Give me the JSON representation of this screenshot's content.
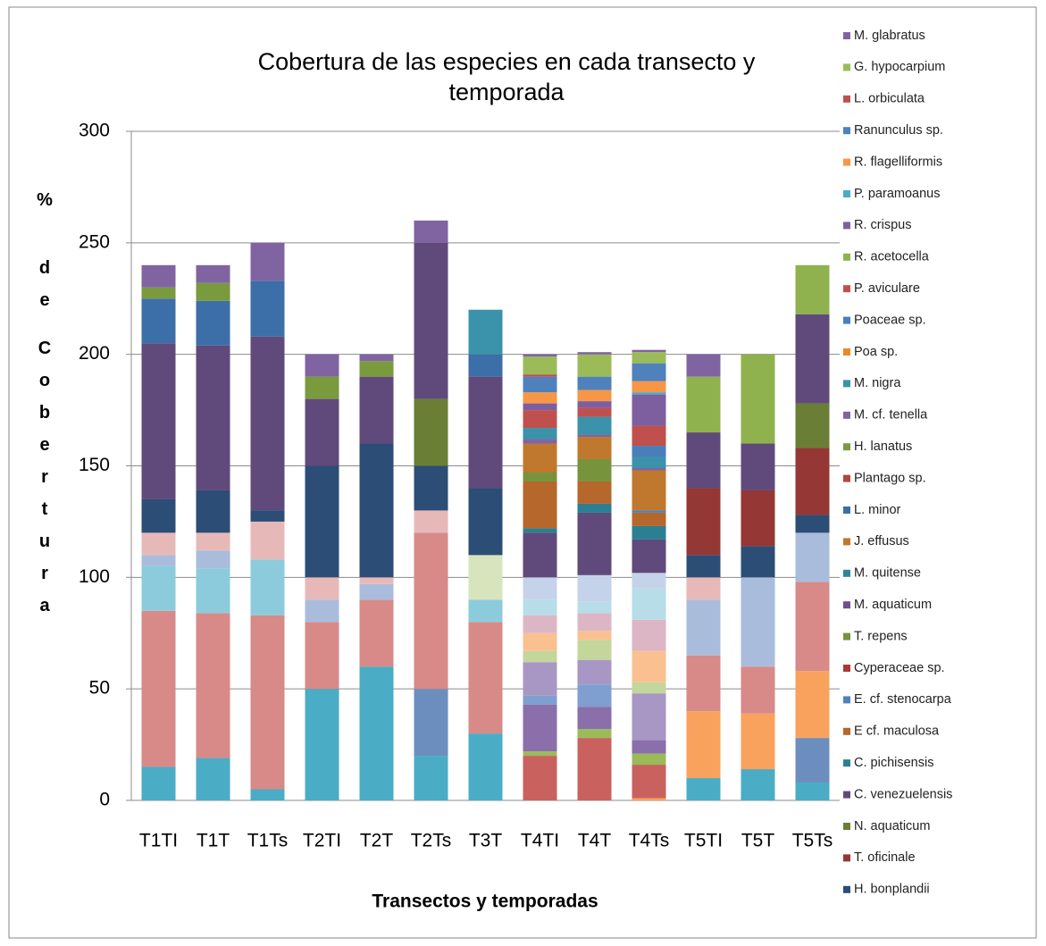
{
  "chart_data": {
    "type": "stacked_bar",
    "title": "Cobertura de las especies en cada transecto y temporada",
    "x_label": "Transectos y temporadas",
    "y_label": "% de Cobertura",
    "categories": [
      "T1TI",
      "T1T",
      "T1Ts",
      "T2TI",
      "T2T",
      "T2Ts",
      "T3T",
      "T4TI",
      "T4T",
      "T4Ts",
      "T5TI",
      "T5T",
      "T5Ts"
    ],
    "ylim": [
      0,
      300
    ],
    "yticks": [
      0,
      50,
      100,
      150,
      200,
      250,
      300
    ],
    "grid": true,
    "legend": "right",
    "series": [
      {
        "color": "#4bacc6",
        "values": [
          15,
          19,
          5,
          50,
          60,
          20,
          30,
          0,
          0,
          0,
          10,
          14,
          8
        ]
      },
      {
        "color": "#6c8ebf",
        "values": [
          0,
          0,
          0,
          0,
          0,
          30,
          0,
          0,
          0,
          0,
          0,
          0,
          20
        ]
      },
      {
        "color": "#f9a25e",
        "values": [
          0,
          0,
          0,
          0,
          0,
          0,
          0,
          0,
          0,
          1,
          30,
          25,
          30
        ]
      },
      {
        "color": "#c9625f",
        "values": [
          0,
          0,
          0,
          0,
          0,
          0,
          0,
          20,
          28,
          15,
          0,
          0,
          0
        ]
      },
      {
        "color": "#9bbb59",
        "values": [
          0,
          0,
          0,
          0,
          0,
          0,
          0,
          2,
          4,
          5,
          0,
          0,
          0
        ]
      },
      {
        "color": "#8a6fab",
        "values": [
          0,
          0,
          0,
          0,
          0,
          0,
          0,
          21,
          10,
          6,
          0,
          0,
          0
        ]
      },
      {
        "color": "#7f9fd0",
        "values": [
          0,
          0,
          0,
          0,
          0,
          0,
          0,
          4,
          10,
          0,
          0,
          0,
          0
        ]
      },
      {
        "color": "#a897c5",
        "values": [
          0,
          0,
          0,
          0,
          0,
          0,
          0,
          15,
          11,
          21,
          0,
          0,
          0
        ]
      },
      {
        "color": "#c3d69b",
        "values": [
          0,
          0,
          0,
          0,
          0,
          0,
          0,
          5,
          9,
          5,
          0,
          0,
          0
        ]
      },
      {
        "color": "#fac090",
        "values": [
          0,
          0,
          0,
          0,
          0,
          0,
          0,
          8,
          4,
          14,
          0,
          0,
          0
        ]
      },
      {
        "color": "#dcb6c4",
        "values": [
          0,
          0,
          0,
          0,
          0,
          0,
          0,
          8,
          8,
          14,
          0,
          0,
          0
        ]
      },
      {
        "color": "#b7dde8",
        "values": [
          0,
          0,
          0,
          0,
          0,
          0,
          0,
          7,
          5,
          14,
          0,
          0,
          0
        ]
      },
      {
        "color": "#c5d3ea",
        "values": [
          0,
          0,
          0,
          0,
          0,
          0,
          0,
          10,
          12,
          7,
          0,
          0,
          0
        ]
      },
      {
        "color": "#d78a88",
        "values": [
          70,
          65,
          78,
          30,
          30,
          70,
          50,
          0,
          0,
          0,
          25,
          21,
          40
        ]
      },
      {
        "color": "#8ccbdc",
        "values": [
          20,
          20,
          25,
          0,
          0,
          0,
          10,
          0,
          0,
          0,
          0,
          0,
          0
        ]
      },
      {
        "color": "#a9bcdc",
        "values": [
          5,
          8,
          0,
          10,
          7,
          0,
          0,
          0,
          0,
          0,
          25,
          40,
          22
        ]
      },
      {
        "color": "#e6b9b8",
        "values": [
          10,
          8,
          17,
          10,
          3,
          10,
          0,
          0,
          0,
          0,
          10,
          0,
          0
        ]
      },
      {
        "color": "#d7e4bc",
        "values": [
          0,
          0,
          0,
          0,
          0,
          0,
          20,
          0,
          0,
          0,
          0,
          0,
          0
        ]
      },
      {
        "name": "H. bonplandii",
        "color": "#2c4d75",
        "values": [
          15,
          19,
          5,
          50,
          60,
          20,
          30,
          0,
          0,
          0,
          10,
          14,
          8
        ]
      },
      {
        "name": "T. oficinale",
        "color": "#953735",
        "values": [
          0,
          0,
          0,
          0,
          0,
          0,
          0,
          0,
          0,
          0,
          30,
          25,
          30
        ]
      },
      {
        "name": "N. aquaticum",
        "color": "#6a7e35",
        "values": [
          0,
          0,
          0,
          0,
          0,
          30,
          0,
          0,
          0,
          0,
          0,
          0,
          20
        ]
      },
      {
        "name": "C. venezuelensis",
        "color": "#604a7b",
        "values": [
          70,
          65,
          78,
          30,
          30,
          70,
          50,
          20,
          28,
          15,
          25,
          21,
          40
        ]
      },
      {
        "name": "C. pichisensis",
        "color": "#2b7f93",
        "values": [
          0,
          0,
          0,
          0,
          0,
          0,
          0,
          2,
          4,
          6,
          0,
          0,
          0
        ]
      },
      {
        "name": "E cf. maculosa",
        "color": "#b5672c",
        "values": [
          0,
          0,
          0,
          0,
          0,
          0,
          0,
          21,
          10,
          6,
          0,
          0,
          0
        ]
      },
      {
        "name": "E. cf. stenocarpa",
        "color": "#4f81bd",
        "values": [
          0,
          0,
          0,
          0,
          0,
          0,
          0,
          0,
          0,
          1,
          0,
          0,
          0
        ]
      },
      {
        "name": "Cyperaceae sp.",
        "color": "#a83a36",
        "values": [
          0,
          0,
          0,
          0,
          0,
          0,
          0,
          0,
          0,
          0,
          0,
          0,
          0
        ]
      },
      {
        "name": "T. repens",
        "color": "#77933c",
        "values": [
          0,
          0,
          0,
          0,
          0,
          0,
          0,
          4,
          10,
          0,
          0,
          0,
          0
        ]
      },
      {
        "name": "M. aquaticum",
        "color": "#6f4f8f",
        "values": [
          0,
          0,
          0,
          0,
          0,
          0,
          0,
          0,
          0,
          0,
          0,
          0,
          0
        ]
      },
      {
        "name": "M. quitense",
        "color": "#31849b",
        "values": [
          0,
          0,
          0,
          0,
          0,
          0,
          0,
          0,
          0,
          0,
          0,
          0,
          0
        ]
      },
      {
        "name": "J. effusus",
        "color": "#c0782e",
        "values": [
          0,
          0,
          0,
          0,
          0,
          0,
          0,
          13,
          10,
          18,
          0,
          0,
          0
        ]
      },
      {
        "name": "L. minor",
        "color": "#3c6ea8",
        "values": [
          20,
          20,
          25,
          0,
          0,
          0,
          10,
          0,
          0,
          0,
          0,
          0,
          0
        ]
      },
      {
        "name": "Plantago sp.",
        "color": "#b04542",
        "values": [
          0,
          0,
          0,
          0,
          0,
          0,
          0,
          0,
          0,
          0,
          0,
          0,
          0
        ]
      },
      {
        "name": "H. lanatus",
        "color": "#7a9a3e",
        "values": [
          5,
          8,
          0,
          10,
          7,
          0,
          0,
          0,
          0,
          0,
          0,
          0,
          0
        ]
      },
      {
        "name": "M. cf. tenella",
        "color": "#8064a2",
        "values": [
          0,
          0,
          0,
          0,
          0,
          0,
          0,
          2,
          1,
          1,
          0,
          0,
          0
        ]
      },
      {
        "name": "M. nigra",
        "color": "#3a93ab",
        "values": [
          0,
          0,
          0,
          0,
          0,
          0,
          20,
          5,
          8,
          5,
          0,
          0,
          0
        ]
      },
      {
        "name": "Poa sp.",
        "color": "#e68a2e",
        "values": [
          0,
          0,
          0,
          0,
          0,
          0,
          0,
          0,
          0,
          0,
          0,
          0,
          0
        ]
      },
      {
        "name": "Poaceae sp.",
        "color": "#4a7ebb",
        "values": [
          0,
          0,
          0,
          0,
          0,
          0,
          0,
          0,
          0,
          5,
          0,
          0,
          0
        ]
      },
      {
        "name": "P. aviculare",
        "color": "#c0504d",
        "values": [
          0,
          0,
          0,
          0,
          0,
          0,
          0,
          8,
          4,
          9,
          0,
          0,
          0
        ]
      },
      {
        "name": "R. acetocella",
        "color": "#8fb24e",
        "values": [
          0,
          0,
          0,
          0,
          0,
          0,
          0,
          0,
          0,
          0,
          25,
          40,
          22
        ]
      },
      {
        "name": "R. crispus",
        "color": "#7d5fa0",
        "values": [
          0,
          0,
          0,
          0,
          0,
          0,
          0,
          3,
          3,
          14,
          0,
          0,
          0
        ]
      },
      {
        "name": "P. paramoanus",
        "color": "#4bacc6",
        "values": [
          0,
          0,
          0,
          0,
          0,
          0,
          0,
          0,
          0,
          1,
          0,
          0,
          0
        ]
      },
      {
        "name": "R. flagelliformis",
        "color": "#f79646",
        "values": [
          0,
          0,
          0,
          0,
          0,
          0,
          0,
          5,
          5,
          5,
          0,
          0,
          0
        ]
      },
      {
        "name": "Ranunculus sp.",
        "color": "#4f81bd",
        "values": [
          0,
          0,
          0,
          0,
          0,
          0,
          0,
          7,
          6,
          8,
          0,
          0,
          0
        ]
      },
      {
        "name": "L. orbiculata",
        "color": "#c0504d",
        "values": [
          0,
          0,
          0,
          0,
          0,
          0,
          0,
          1,
          0,
          0,
          0,
          0,
          0
        ]
      },
      {
        "name": "G. hypocarpium",
        "color": "#9bbb59",
        "values": [
          0,
          0,
          0,
          0,
          0,
          0,
          0,
          8,
          10,
          5,
          0,
          0,
          0
        ]
      },
      {
        "name": "M. glabratus",
        "color": "#8064a2",
        "values": [
          10,
          8,
          17,
          10,
          3,
          10,
          0,
          1,
          1,
          1,
          10,
          0,
          0
        ]
      }
    ]
  }
}
